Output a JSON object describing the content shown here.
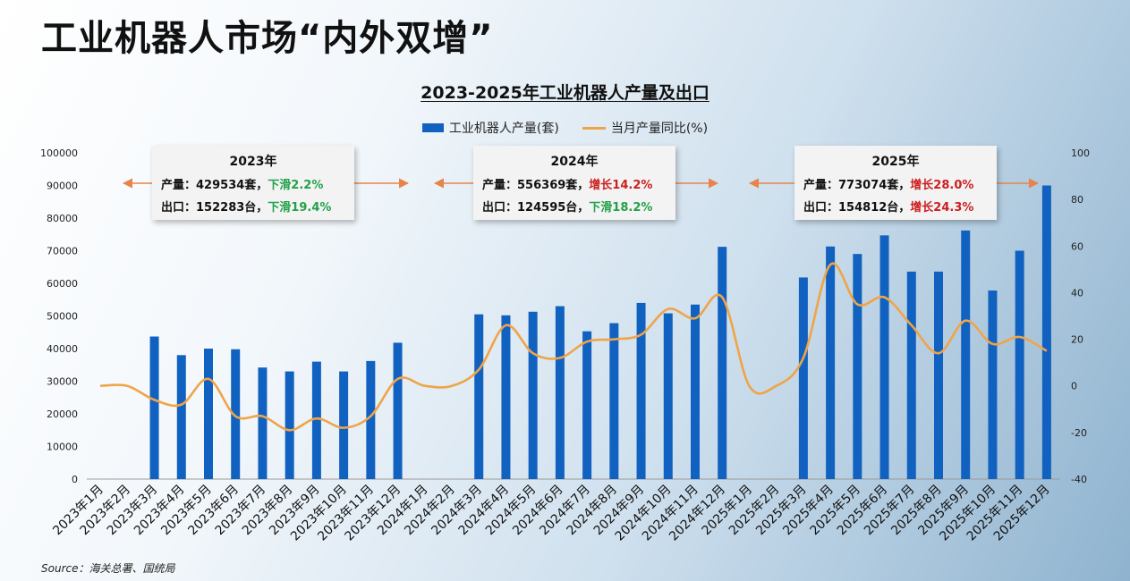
{
  "header": {
    "title": "工业机器人市场“内外双增”"
  },
  "source": "Source：海关总署、国统局",
  "colors": {
    "bar": "#1162c0",
    "line": "#f0a448",
    "arrow": "#e8844a",
    "down": "#22a14a",
    "up": "#cc1f1f"
  },
  "annotations": [
    {
      "year": "2023年",
      "prod_label": "产量：",
      "prod_value": "429534套，",
      "prod_change": "下滑2.2%",
      "prod_dir": "down",
      "exp_label": "出口：",
      "exp_value": "152283台，",
      "exp_change": "下滑19.4%",
      "exp_dir": "down"
    },
    {
      "year": "2024年",
      "prod_label": "产量：",
      "prod_value": "556369套，",
      "prod_change": "增长14.2%",
      "prod_dir": "up",
      "exp_label": "出口：",
      "exp_value": "124595台，",
      "exp_change": "下滑18.2%",
      "exp_dir": "down"
    },
    {
      "year": "2025年",
      "prod_label": "产量：",
      "prod_value": "773074套，",
      "prod_change": "增长28.0%",
      "prod_dir": "up",
      "exp_label": "出口：",
      "exp_value": "154812台，",
      "exp_change": "增长24.3%",
      "exp_dir": "up"
    }
  ],
  "chart_data": {
    "type": "bar+line",
    "title": "2023-2025年工业机器人产量及出口",
    "legend": [
      "工业机器人产量(套)",
      "当月产量同比(%)"
    ],
    "legend_position": "top",
    "categories": [
      "2023年1月",
      "2023年2月",
      "2023年3月",
      "2023年4月",
      "2023年5月",
      "2023年6月",
      "2023年7月",
      "2023年8月",
      "2023年9月",
      "2023年10月",
      "2023年11月",
      "2023年12月",
      "2024年1月",
      "2024年2月",
      "2024年3月",
      "2024年4月",
      "2024年5月",
      "2024年6月",
      "2024年7月",
      "2024年8月",
      "2024年9月",
      "2024年10月",
      "2024年11月",
      "2024年12月",
      "2025年1月",
      "2025年2月",
      "2025年3月",
      "2025年4月",
      "2025年5月",
      "2025年6月",
      "2025年7月",
      "2025年8月",
      "2025年9月",
      "2025年10月",
      "2025年11月",
      "2025年12月"
    ],
    "series": [
      {
        "name": "工业机器人产量(套)",
        "type": "bar",
        "axis": "left",
        "values": [
          null,
          null,
          43700,
          38000,
          40000,
          39800,
          34200,
          33000,
          36000,
          33000,
          36200,
          41800,
          null,
          null,
          50500,
          50200,
          51300,
          53000,
          45300,
          47800,
          54000,
          50800,
          53500,
          71200,
          null,
          null,
          61800,
          71300,
          69000,
          74700,
          63600,
          63600,
          76200,
          57800,
          70000,
          90000
        ]
      },
      {
        "name": "当月产量同比(%)",
        "type": "line",
        "axis": "right",
        "values": [
          0,
          0,
          -6,
          -8,
          3,
          -13,
          -13,
          -19,
          -14,
          -18,
          -13,
          3,
          0,
          0,
          7,
          26,
          14,
          12,
          19,
          20,
          22,
          33,
          29,
          38,
          0,
          0,
          12,
          52,
          35,
          38,
          26,
          14,
          28,
          18,
          21,
          15
        ]
      }
    ],
    "y_left": {
      "min": 0,
      "max": 100000,
      "ticks": [
        0,
        10000,
        20000,
        30000,
        40000,
        50000,
        60000,
        70000,
        80000,
        90000,
        100000
      ]
    },
    "y_right": {
      "min": -40,
      "max": 100,
      "ticks": [
        -40,
        -20,
        0,
        20,
        40,
        60,
        80,
        100
      ]
    },
    "grid": false
  }
}
